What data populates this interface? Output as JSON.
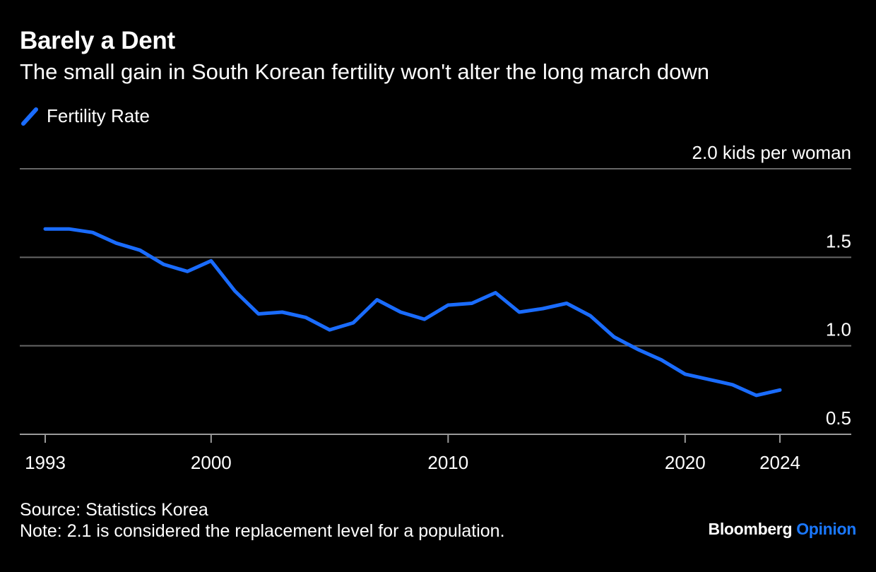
{
  "title": "Barely a Dent",
  "subtitle": "The small gain in South Korean fertility won't alter the long march down",
  "footer": {
    "source": "Source: Statistics Korea",
    "note": "Note: 2.1 is considered the replacement level for a population."
  },
  "brand": {
    "name": "Bloomberg",
    "suffix": "Opinion",
    "suffix_color": "#1a78ff"
  },
  "colors": {
    "background": "#000000",
    "series": "#1a6cff",
    "gridline": "#666666",
    "text": "#ffffff"
  },
  "chart_data": {
    "type": "line",
    "xlim": [
      1993,
      2026
    ],
    "ylim": [
      0.5,
      2.0
    ],
    "y_axis_position": "right",
    "grid": true,
    "legend_position": "top-left",
    "x_ticks": [
      {
        "value": 1993,
        "label": "1993"
      },
      {
        "value": 2000,
        "label": "2000"
      },
      {
        "value": 2010,
        "label": "2010"
      },
      {
        "value": 2020,
        "label": "2020"
      },
      {
        "value": 2024,
        "label": "2024"
      }
    ],
    "y_ticks": [
      {
        "value": 0.5,
        "label": "0.5"
      },
      {
        "value": 1.0,
        "label": "1.0"
      },
      {
        "value": 1.5,
        "label": "1.5"
      },
      {
        "value": 2.0,
        "label": "2.0 kids per woman"
      }
    ],
    "series": [
      {
        "name": "Fertility Rate",
        "x": [
          1993,
          1994,
          1995,
          1996,
          1997,
          1998,
          1999,
          2000,
          2001,
          2002,
          2003,
          2004,
          2005,
          2006,
          2007,
          2008,
          2009,
          2010,
          2011,
          2012,
          2013,
          2014,
          2015,
          2016,
          2017,
          2018,
          2019,
          2020,
          2021,
          2022,
          2023,
          2024
        ],
        "y": [
          1.66,
          1.66,
          1.64,
          1.58,
          1.54,
          1.46,
          1.42,
          1.48,
          1.31,
          1.18,
          1.19,
          1.16,
          1.09,
          1.13,
          1.26,
          1.19,
          1.15,
          1.23,
          1.24,
          1.3,
          1.19,
          1.21,
          1.24,
          1.17,
          1.05,
          0.98,
          0.92,
          0.84,
          0.81,
          0.78,
          0.72,
          0.75
        ]
      }
    ]
  }
}
